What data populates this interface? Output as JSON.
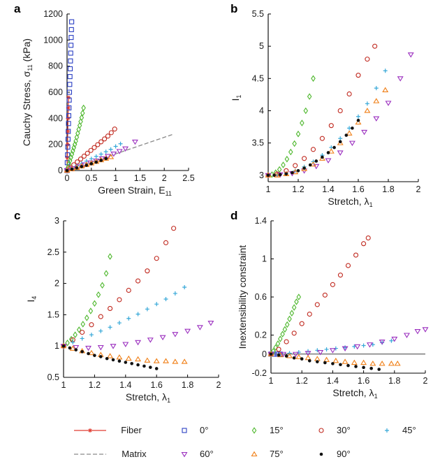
{
  "legend": [
    {
      "key": "fiber",
      "label": "Fiber",
      "marker": "star",
      "color": "#e03c31"
    },
    {
      "key": "matrix",
      "label": "Matrix",
      "marker": "dash",
      "color": "#8a8a8a"
    },
    {
      "key": "a0",
      "label": "0°",
      "marker": "square",
      "color": "#2a3fc4"
    },
    {
      "key": "a15",
      "label": "15°",
      "marker": "diamond",
      "color": "#4fb82e"
    },
    {
      "key": "a30",
      "label": "30°",
      "marker": "circle",
      "color": "#c0281e"
    },
    {
      "key": "a45",
      "label": "45°",
      "marker": "plus",
      "color": "#36a8d8"
    },
    {
      "key": "a60",
      "label": "60°",
      "marker": "tri-down",
      "color": "#9b2fbf"
    },
    {
      "key": "a75",
      "label": "75°",
      "marker": "tri-up",
      "color": "#f07f16"
    },
    {
      "key": "a90",
      "label": "90°",
      "marker": "dot",
      "color": "#111111"
    }
  ],
  "chart_data": [
    {
      "panel": "a",
      "type": "scatter",
      "xlabel": "Green Strain, E",
      "xlabel_sub": "11",
      "ylabel": "Cauchy Stress, σ",
      "ylabel_sub": "11",
      "ylabel_suffix": " (kPa)",
      "xlim": [
        0,
        2.5
      ],
      "ylim": [
        0,
        1200
      ],
      "xticks": [
        0,
        0.5,
        1,
        1.5,
        2,
        2.5
      ],
      "xtick_labels": [
        "0",
        "0.5",
        "1",
        "1.5",
        "2",
        "2.5"
      ],
      "yticks": [
        0,
        200,
        400,
        600,
        800,
        1000,
        1200
      ],
      "ytick_labels": [
        "0",
        "200",
        "400",
        "600",
        "800",
        "1000",
        "1200"
      ],
      "series": [
        {
          "key": "fiber",
          "style": "line",
          "x": [
            0,
            0.005,
            0.01,
            0.015,
            0.02,
            0.025,
            0.03
          ],
          "y": [
            0,
            100,
            200,
            300,
            400,
            480,
            560
          ]
        },
        {
          "key": "matrix",
          "style": "dash",
          "x": [
            0,
            2.2
          ],
          "y": [
            0,
            280
          ]
        },
        {
          "key": "a0",
          "x": [
            0,
            0.005,
            0.01,
            0.015,
            0.02,
            0.025,
            0.03,
            0.035,
            0.04,
            0.045,
            0.05,
            0.055,
            0.06,
            0.065,
            0.07,
            0.075,
            0.08,
            0.085,
            0.09,
            0.095
          ],
          "y": [
            0,
            60,
            120,
            180,
            240,
            300,
            360,
            420,
            480,
            540,
            600,
            660,
            720,
            780,
            840,
            900,
            960,
            1020,
            1080,
            1140
          ]
        },
        {
          "key": "a15",
          "x": [
            0,
            0.02,
            0.04,
            0.06,
            0.08,
            0.1,
            0.12,
            0.14,
            0.16,
            0.18,
            0.2,
            0.22,
            0.24,
            0.26,
            0.28,
            0.3,
            0.32,
            0.34
          ],
          "y": [
            0,
            25,
            50,
            75,
            100,
            125,
            150,
            175,
            200,
            225,
            255,
            285,
            315,
            345,
            375,
            405,
            440,
            480
          ]
        },
        {
          "key": "a30",
          "x": [
            0,
            0.07,
            0.14,
            0.21,
            0.28,
            0.35,
            0.42,
            0.49,
            0.56,
            0.63,
            0.7,
            0.77,
            0.84,
            0.91,
            0.98
          ],
          "y": [
            0,
            22,
            44,
            66,
            88,
            110,
            132,
            154,
            176,
            198,
            220,
            242,
            264,
            290,
            318
          ]
        },
        {
          "key": "a45",
          "x": [
            0,
            0.1,
            0.2,
            0.3,
            0.4,
            0.5,
            0.6,
            0.7,
            0.8,
            0.9,
            1.0,
            1.1
          ],
          "y": [
            0,
            18,
            36,
            54,
            72,
            90,
            108,
            126,
            144,
            162,
            185,
            205
          ]
        },
        {
          "key": "a60",
          "x": [
            0,
            0.12,
            0.24,
            0.36,
            0.48,
            0.6,
            0.72,
            0.84,
            0.96,
            1.08,
            1.2,
            1.4
          ],
          "y": [
            0,
            15,
            30,
            45,
            60,
            75,
            92,
            110,
            128,
            148,
            168,
            220
          ]
        },
        {
          "key": "a75",
          "x": [
            0,
            0.1,
            0.2,
            0.3,
            0.4,
            0.5,
            0.6,
            0.7,
            0.8,
            0.9
          ],
          "y": [
            0,
            11,
            22,
            33,
            44,
            56,
            68,
            80,
            92,
            104
          ]
        },
        {
          "key": "a90",
          "x": [
            0,
            0.1,
            0.2,
            0.3,
            0.4,
            0.5,
            0.6,
            0.7,
            0.8
          ],
          "y": [
            0,
            10,
            20,
            30,
            40,
            52,
            64,
            78,
            92
          ]
        }
      ]
    },
    {
      "panel": "b",
      "type": "scatter",
      "xlabel": "Stretch, λ",
      "xlabel_sub": "1",
      "ylabel": "I",
      "ylabel_sub": "1",
      "ylabel_suffix": "",
      "xlim": [
        1,
        2
      ],
      "ylim": [
        2.9,
        5.5
      ],
      "xticks": [
        1,
        1.2,
        1.4,
        1.6,
        1.8,
        2
      ],
      "xtick_labels": [
        "1",
        "1.2",
        "1.4",
        "1.6",
        "1.8",
        "2"
      ],
      "yticks": [
        3,
        3.5,
        4,
        4.5,
        5,
        5.5
      ],
      "ytick_labels": [
        "3",
        "3.5",
        "4",
        "4.5",
        "5",
        "5.5"
      ],
      "series": [
        {
          "key": "a15",
          "x": [
            1,
            1.025,
            1.05,
            1.075,
            1.1,
            1.125,
            1.15,
            1.175,
            1.2,
            1.225,
            1.25,
            1.275,
            1.3
          ],
          "y": [
            3.0,
            3.01,
            3.04,
            3.09,
            3.16,
            3.25,
            3.36,
            3.49,
            3.64,
            3.81,
            4.0,
            4.22,
            4.5
          ]
        },
        {
          "key": "a30",
          "x": [
            1,
            1.06,
            1.12,
            1.18,
            1.24,
            1.3,
            1.36,
            1.42,
            1.48,
            1.54,
            1.6,
            1.66,
            1.71
          ],
          "y": [
            3.0,
            3.02,
            3.07,
            3.15,
            3.26,
            3.4,
            3.57,
            3.77,
            4.0,
            4.26,
            4.55,
            4.8,
            5.0
          ]
        },
        {
          "key": "a45",
          "x": [
            1,
            1.06,
            1.12,
            1.18,
            1.24,
            1.3,
            1.36,
            1.42,
            1.48,
            1.54,
            1.6,
            1.66,
            1.72,
            1.78
          ],
          "y": [
            3.0,
            3.01,
            3.03,
            3.07,
            3.13,
            3.21,
            3.31,
            3.43,
            3.57,
            3.73,
            3.91,
            4.11,
            4.35,
            4.62
          ]
        },
        {
          "key": "a60",
          "x": [
            1,
            1.08,
            1.16,
            1.24,
            1.32,
            1.4,
            1.48,
            1.56,
            1.64,
            1.72,
            1.8,
            1.88,
            1.95
          ],
          "y": [
            3.0,
            3.01,
            3.03,
            3.07,
            3.14,
            3.23,
            3.35,
            3.5,
            3.67,
            3.88,
            4.12,
            4.5,
            4.87
          ]
        },
        {
          "key": "a75",
          "x": [
            1,
            1.06,
            1.12,
            1.18,
            1.24,
            1.3,
            1.36,
            1.42,
            1.48,
            1.54,
            1.6,
            1.66,
            1.72,
            1.78
          ],
          "y": [
            3.0,
            3.0,
            3.02,
            3.05,
            3.1,
            3.17,
            3.26,
            3.37,
            3.5,
            3.65,
            3.82,
            4.0,
            4.15,
            4.32
          ]
        },
        {
          "key": "a90",
          "x": [
            1,
            1.04,
            1.08,
            1.12,
            1.16,
            1.2,
            1.24,
            1.28,
            1.32,
            1.36,
            1.4,
            1.44,
            1.48,
            1.52,
            1.56,
            1.6
          ],
          "y": [
            3.0,
            3.0,
            3.01,
            3.02,
            3.04,
            3.07,
            3.11,
            3.16,
            3.22,
            3.28,
            3.35,
            3.43,
            3.52,
            3.62,
            3.73,
            3.85
          ]
        }
      ]
    },
    {
      "panel": "c",
      "type": "scatter",
      "xlabel": "Stretch, λ",
      "xlabel_sub": "1",
      "ylabel": "I",
      "ylabel_sub": "4",
      "ylabel_suffix": "",
      "xlim": [
        1,
        2
      ],
      "ylim": [
        0.5,
        3
      ],
      "xticks": [
        1,
        1.2,
        1.4,
        1.6,
        1.8,
        2
      ],
      "xtick_labels": [
        "1",
        "1.2",
        "1.4",
        "1.6",
        "1.8",
        "2"
      ],
      "yticks": [
        0.5,
        1,
        1.5,
        2,
        2.5,
        3
      ],
      "ytick_labels": [
        "0.5",
        "1",
        "1.5",
        "2",
        "2.5",
        "3"
      ],
      "series": [
        {
          "key": "a15",
          "x": [
            1,
            1.025,
            1.05,
            1.075,
            1.1,
            1.125,
            1.15,
            1.175,
            1.2,
            1.225,
            1.25,
            1.275,
            1.3
          ],
          "y": [
            1.0,
            1.05,
            1.11,
            1.18,
            1.26,
            1.35,
            1.45,
            1.56,
            1.68,
            1.82,
            1.97,
            2.16,
            2.43
          ]
        },
        {
          "key": "a30",
          "x": [
            1,
            1.06,
            1.12,
            1.18,
            1.24,
            1.3,
            1.36,
            1.42,
            1.48,
            1.54,
            1.6,
            1.66,
            1.71
          ],
          "y": [
            1.0,
            1.1,
            1.22,
            1.34,
            1.47,
            1.6,
            1.74,
            1.89,
            2.04,
            2.2,
            2.4,
            2.65,
            2.88
          ]
        },
        {
          "key": "a45",
          "x": [
            1,
            1.06,
            1.12,
            1.18,
            1.24,
            1.3,
            1.36,
            1.42,
            1.48,
            1.54,
            1.6,
            1.66,
            1.72,
            1.78
          ],
          "y": [
            1.0,
            1.06,
            1.12,
            1.18,
            1.24,
            1.3,
            1.37,
            1.44,
            1.51,
            1.59,
            1.67,
            1.75,
            1.84,
            1.94
          ]
        },
        {
          "key": "a60",
          "x": [
            1,
            1.08,
            1.16,
            1.24,
            1.32,
            1.4,
            1.48,
            1.56,
            1.64,
            1.72,
            1.8,
            1.88,
            1.95
          ],
          "y": [
            1.0,
            0.98,
            0.97,
            0.98,
            1.0,
            1.03,
            1.06,
            1.1,
            1.14,
            1.19,
            1.24,
            1.3,
            1.37
          ]
        },
        {
          "key": "a75",
          "x": [
            1,
            1.06,
            1.12,
            1.18,
            1.24,
            1.3,
            1.36,
            1.42,
            1.48,
            1.54,
            1.6,
            1.66,
            1.72,
            1.78
          ],
          "y": [
            1.0,
            0.96,
            0.92,
            0.89,
            0.86,
            0.84,
            0.82,
            0.8,
            0.79,
            0.77,
            0.76,
            0.76,
            0.75,
            0.75
          ]
        },
        {
          "key": "a90",
          "x": [
            1,
            1.04,
            1.08,
            1.12,
            1.16,
            1.2,
            1.24,
            1.28,
            1.32,
            1.36,
            1.4,
            1.44,
            1.48,
            1.52,
            1.56,
            1.6
          ],
          "y": [
            1.0,
            0.97,
            0.94,
            0.91,
            0.88,
            0.85,
            0.83,
            0.8,
            0.78,
            0.76,
            0.74,
            0.72,
            0.7,
            0.68,
            0.66,
            0.64
          ]
        }
      ]
    },
    {
      "panel": "d",
      "type": "scatter",
      "xlabel": "Stretch, λ",
      "xlabel_sub": "1",
      "ylabel": "Inextensibility constraint",
      "ylabel_sub": "",
      "ylabel_suffix": "",
      "xlim": [
        1,
        2
      ],
      "ylim": [
        -0.2,
        1.4
      ],
      "xticks": [
        1,
        1.2,
        1.4,
        1.6,
        1.8,
        2
      ],
      "xtick_labels": [
        "1",
        "1.2",
        "1.4",
        "1.6",
        "1.8",
        "2"
      ],
      "yticks": [
        -0.2,
        0,
        0.2,
        0.6,
        1,
        1.4
      ],
      "ytick_labels": [
        "-0.2",
        "0",
        "0.2",
        "0.6",
        "1",
        "1.4"
      ],
      "series": [
        {
          "key": "a0",
          "x": [
            1,
            1.02,
            1.04,
            1.06
          ],
          "y": [
            0,
            0.0,
            0.0,
            0.0
          ]
        },
        {
          "key": "a15",
          "x": [
            1,
            1.015,
            1.03,
            1.045,
            1.06,
            1.075,
            1.09,
            1.105,
            1.12,
            1.135,
            1.15,
            1.165,
            1.18
          ],
          "y": [
            0.0,
            0.03,
            0.07,
            0.11,
            0.16,
            0.21,
            0.26,
            0.31,
            0.37,
            0.43,
            0.49,
            0.55,
            0.6
          ]
        },
        {
          "key": "a30",
          "x": [
            1,
            1.05,
            1.1,
            1.15,
            1.2,
            1.25,
            1.3,
            1.35,
            1.4,
            1.45,
            1.5,
            1.55,
            1.6,
            1.63
          ],
          "y": [
            0.0,
            0.05,
            0.13,
            0.22,
            0.32,
            0.42,
            0.52,
            0.62,
            0.73,
            0.83,
            0.93,
            1.04,
            1.16,
            1.22
          ]
        },
        {
          "key": "a45",
          "x": [
            1,
            1.06,
            1.12,
            1.18,
            1.24,
            1.3,
            1.36,
            1.42,
            1.48,
            1.54,
            1.6,
            1.66,
            1.72,
            1.78
          ],
          "y": [
            0.0,
            0.0,
            0.01,
            0.02,
            0.03,
            0.04,
            0.05,
            0.06,
            0.07,
            0.08,
            0.09,
            0.1,
            0.12,
            0.14
          ]
        },
        {
          "key": "a60",
          "x": [
            1,
            1.08,
            1.16,
            1.24,
            1.32,
            1.4,
            1.48,
            1.56,
            1.64,
            1.72,
            1.8,
            1.88,
            1.95,
            2.0
          ],
          "y": [
            0.0,
            0.0,
            0.0,
            0.01,
            0.02,
            0.04,
            0.06,
            0.08,
            0.1,
            0.13,
            0.16,
            0.2,
            0.24,
            0.26
          ]
        },
        {
          "key": "a75",
          "x": [
            1,
            1.06,
            1.12,
            1.18,
            1.24,
            1.3,
            1.36,
            1.42,
            1.48,
            1.54,
            1.6,
            1.66,
            1.72,
            1.78,
            1.82
          ],
          "y": [
            0.0,
            -0.01,
            -0.02,
            -0.03,
            -0.04,
            -0.05,
            -0.06,
            -0.07,
            -0.08,
            -0.09,
            -0.09,
            -0.1,
            -0.1,
            -0.1,
            -0.1
          ]
        },
        {
          "key": "a90",
          "x": [
            1,
            1.05,
            1.1,
            1.15,
            1.2,
            1.25,
            1.3,
            1.35,
            1.4,
            1.45,
            1.5,
            1.55,
            1.6,
            1.65,
            1.7
          ],
          "y": [
            0.0,
            -0.01,
            -0.02,
            -0.04,
            -0.05,
            -0.07,
            -0.08,
            -0.09,
            -0.1,
            -0.11,
            -0.12,
            -0.13,
            -0.14,
            -0.15,
            -0.16
          ]
        }
      ]
    }
  ]
}
